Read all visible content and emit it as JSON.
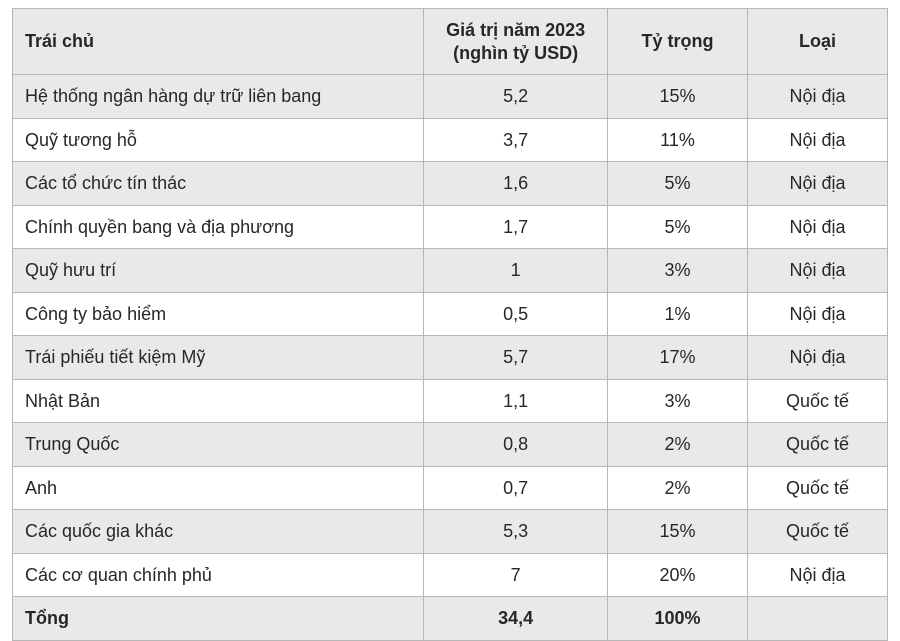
{
  "table": {
    "type": "table",
    "background_color": "#ffffff",
    "alt_row_color": "#e9e9e9",
    "border_color": "#b7b7b7",
    "text_color": "#272727",
    "font_size_pt": 13,
    "header_font_weight": "bold",
    "total_font_weight": "bold",
    "column_widths_pct": [
      47,
      21,
      16,
      16
    ],
    "columns": [
      "Trái chủ",
      "Giá trị năm 2023 (nghìn tỷ USD)",
      "Tỷ trọng",
      "Loại"
    ],
    "column_header_align": [
      "left",
      "center",
      "center",
      "center"
    ],
    "column_body_align": [
      "left",
      "center",
      "center",
      "center"
    ],
    "rows": [
      {
        "trai_chu": "Hệ thống ngân hàng dự trữ liên bang",
        "gia_tri": "5,2",
        "ty_trong": "15%",
        "loai": "Nội địa"
      },
      {
        "trai_chu": "Quỹ tương hỗ",
        "gia_tri": "3,7",
        "ty_trong": "11%",
        "loai": "Nội địa"
      },
      {
        "trai_chu": "Các tổ chức tín thác",
        "gia_tri": "1,6",
        "ty_trong": "5%",
        "loai": "Nội địa"
      },
      {
        "trai_chu": "Chính quyền bang và địa phương",
        "gia_tri": "1,7",
        "ty_trong": "5%",
        "loai": "Nội địa"
      },
      {
        "trai_chu": "Quỹ hưu trí",
        "gia_tri": "1",
        "ty_trong": "3%",
        "loai": "Nội địa"
      },
      {
        "trai_chu": "Công ty bảo hiểm",
        "gia_tri": "0,5",
        "ty_trong": "1%",
        "loai": "Nội địa"
      },
      {
        "trai_chu": "Trái phiếu tiết kiệm Mỹ",
        "gia_tri": "5,7",
        "ty_trong": "17%",
        "loai": "Nội địa"
      },
      {
        "trai_chu": "Nhật Bản",
        "gia_tri": "1,1",
        "ty_trong": "3%",
        "loai": "Quốc tế"
      },
      {
        "trai_chu": "Trung Quốc",
        "gia_tri": "0,8",
        "ty_trong": "2%",
        "loai": "Quốc tế"
      },
      {
        "trai_chu": "Anh",
        "gia_tri": "0,7",
        "ty_trong": "2%",
        "loai": "Quốc tế"
      },
      {
        "trai_chu": "Các quốc gia khác",
        "gia_tri": "5,3",
        "ty_trong": "15%",
        "loai": "Quốc tế"
      },
      {
        "trai_chu": "Các cơ quan chính phủ",
        "gia_tri": "7",
        "ty_trong": "20%",
        "loai": "Nội địa"
      }
    ],
    "total": {
      "label": "Tổng",
      "gia_tri": "34,4",
      "ty_trong": "100%",
      "loai": ""
    }
  }
}
